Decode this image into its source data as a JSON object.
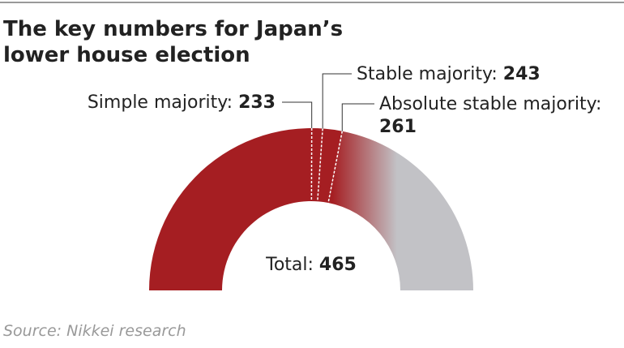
{
  "chart_data": {
    "type": "semicircle",
    "title": [
      "The key numbers for Japan’s",
      "lower house election"
    ],
    "total": {
      "label": "Total:",
      "value": 465
    },
    "markers": [
      {
        "label": "Simple majority:",
        "value": 233
      },
      {
        "label": "Stable majority:",
        "value": 243
      },
      {
        "label": "Absolute stable majority:",
        "value": 261
      }
    ],
    "colors": {
      "seats": "#a51e22",
      "rest": "#c2c2c6"
    },
    "source": "Source: Nikkei research"
  }
}
